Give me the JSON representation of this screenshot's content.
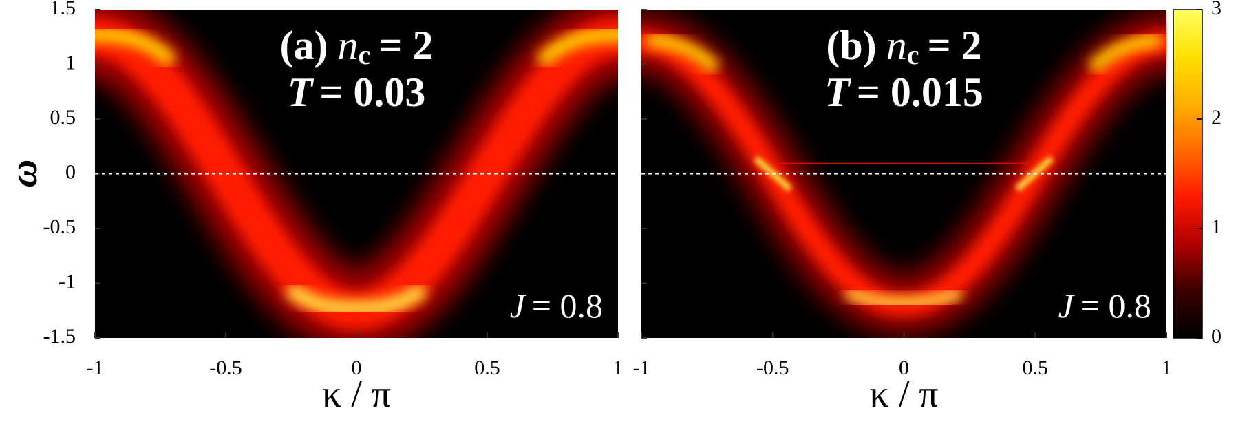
{
  "chart_data": [
    {
      "type": "heatmap",
      "title_parts": [
        "(a)",
        "n",
        "c",
        "= 2"
      ],
      "subtitle_parts": [
        "T",
        "= 0.03"
      ],
      "annotation_parts": [
        "J",
        "= 0.8"
      ],
      "xlabel": "κ / π",
      "ylabel": "ω",
      "xlim": [
        -1,
        1
      ],
      "ylim": [
        -1.5,
        1.5
      ],
      "xticks": [
        -1,
        -0.5,
        0,
        0.5,
        1
      ],
      "yticks": [
        -1.5,
        -1,
        -0.5,
        0,
        0.5,
        1,
        1.5
      ],
      "ytick_labels": true,
      "hline": 0
    },
    {
      "type": "heatmap",
      "title_parts": [
        "(b)",
        "n",
        "c",
        "= 2"
      ],
      "subtitle_parts": [
        "T",
        "= 0.015"
      ],
      "annotation_parts": [
        "J",
        "= 0.8"
      ],
      "xlabel": "κ / π",
      "xlim": [
        -1,
        1
      ],
      "ylim": [
        -1.5,
        1.5
      ],
      "xticks": [
        -1,
        -0.5,
        0,
        0.5,
        1
      ],
      "yticks": [
        -1.5,
        -1,
        -0.5,
        0,
        0.5,
        1,
        1.5
      ],
      "ytick_labels": false,
      "hline": 0,
      "colorbar": {
        "lim": [
          0,
          3
        ],
        "ticks": [
          0,
          1,
          2,
          3
        ],
        "colors": [
          "#000000",
          "#3a0000",
          "#b00000",
          "#ff1a00",
          "#ff6a00",
          "#ffb000",
          "#ffe000",
          "#ffff60"
        ]
      }
    }
  ]
}
